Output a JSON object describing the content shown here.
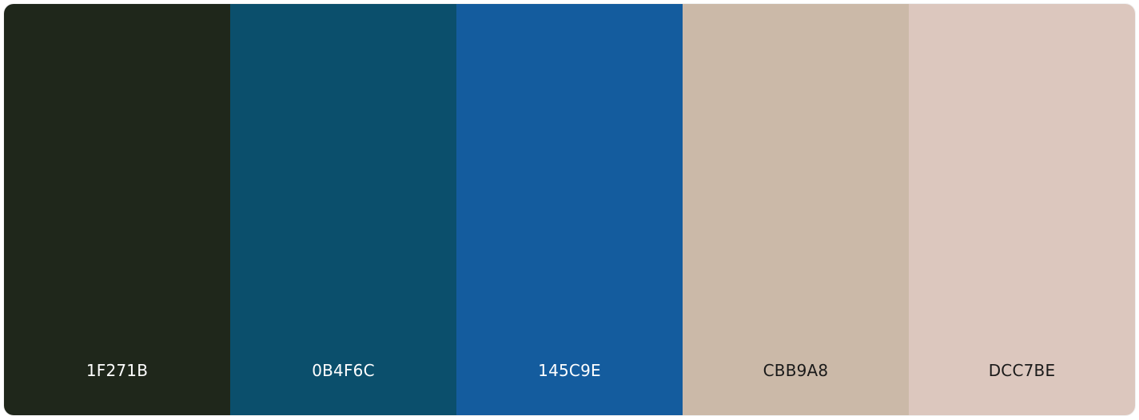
{
  "palette": {
    "swatches": [
      {
        "hex": "1F271B",
        "color": "#1F271B",
        "text_color": "#ffffff"
      },
      {
        "hex": "0B4F6C",
        "color": "#0B4F6C",
        "text_color": "#ffffff"
      },
      {
        "hex": "145C9E",
        "color": "#145C9E",
        "text_color": "#ffffff"
      },
      {
        "hex": "CBB9A8",
        "color": "#CBB9A8",
        "text_color": "#1a1a1a"
      },
      {
        "hex": "DCC7BE",
        "color": "#DCC7BE",
        "text_color": "#1a1a1a"
      }
    ]
  }
}
